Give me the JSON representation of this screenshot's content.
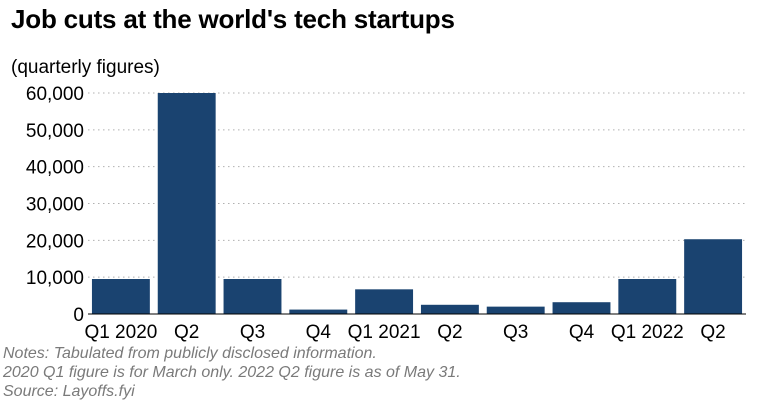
{
  "title": "Job cuts at the world's tech startups",
  "subtitle": "(quarterly figures)",
  "notes": [
    "Notes: Tabulated from publicly disclosed information.",
    "2020 Q1 figure is for March only. 2022 Q2 figure is as of May 31.",
    "Source: Layoffs.fyi"
  ],
  "colors": {
    "bar": "#1a4370",
    "grid": "#b0b0b0"
  },
  "chart_data": {
    "type": "bar",
    "categories": [
      "Q1 2020",
      "Q2",
      "Q3",
      "Q4",
      "Q1 2021",
      "Q2",
      "Q3",
      "Q4",
      "Q1 2022",
      "Q2"
    ],
    "values": [
      9500,
      60000,
      9500,
      1200,
      6700,
      2500,
      2000,
      3200,
      9500,
      20300
    ],
    "yticks": [
      "0",
      "10,000",
      "20,000",
      "30,000",
      "40,000",
      "50,000",
      "60,000"
    ],
    "ytick_values": [
      0,
      10000,
      20000,
      30000,
      40000,
      50000,
      60000
    ],
    "ylim": [
      0,
      60000
    ],
    "grid": true,
    "grid_style": "dotted",
    "xlabel": "",
    "ylabel": ""
  }
}
